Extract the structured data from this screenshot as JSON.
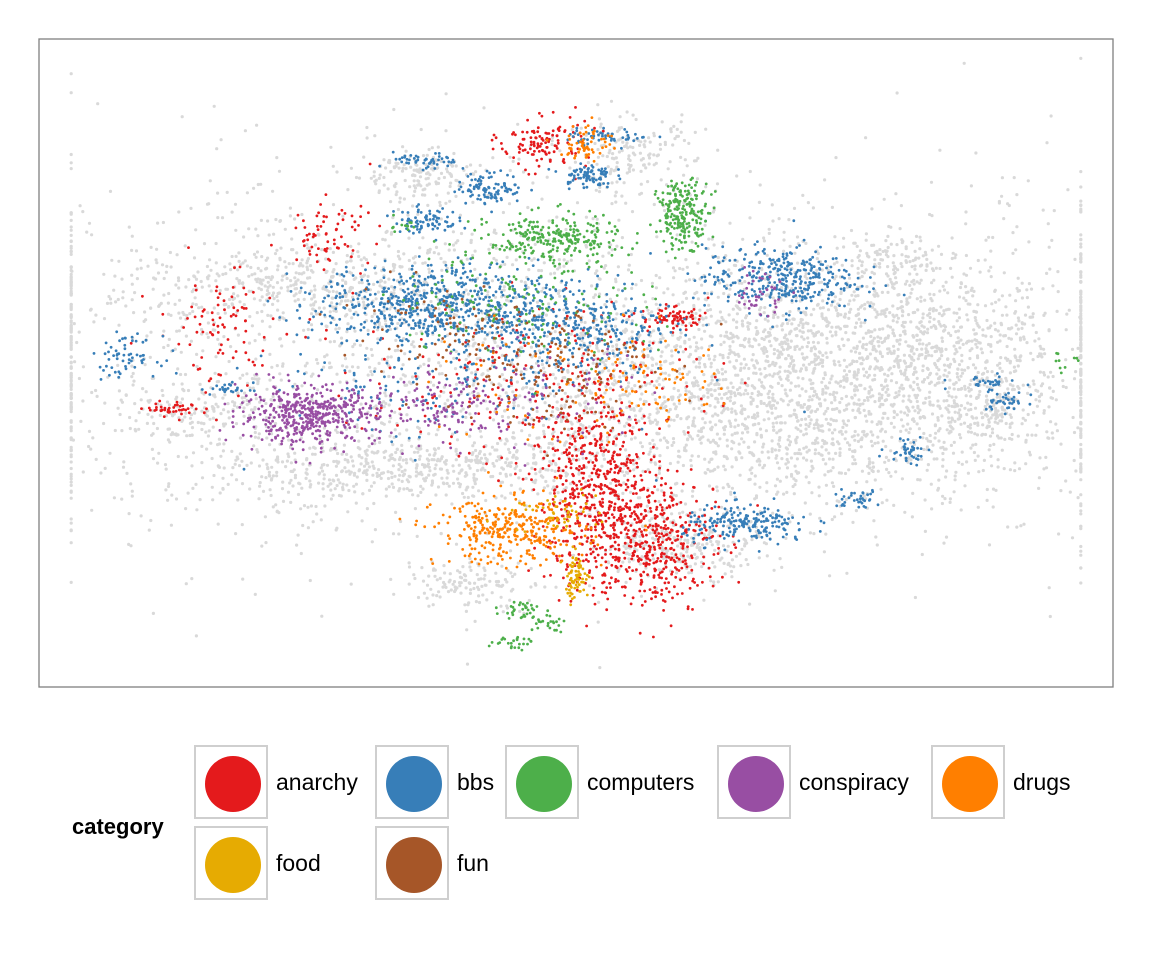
{
  "chart_data": {
    "type": "scatter",
    "title": "",
    "xlabel": "",
    "ylabel": "",
    "axes_visible": false,
    "grid": false,
    "background_points_color": "#d9d9d9",
    "legend": {
      "title": "category",
      "placement": "bottom",
      "entries": [
        {
          "name": "anarchy",
          "color": "#e41a1c"
        },
        {
          "name": "bbs",
          "color": "#377eb8"
        },
        {
          "name": "computers",
          "color": "#4daf4a"
        },
        {
          "name": "conspiracy",
          "color": "#984ea3"
        },
        {
          "name": "drugs",
          "color": "#ff7f00"
        },
        {
          "name": "food",
          "color": "#e6ab02"
        },
        {
          "name": "fun",
          "color": "#a65628"
        }
      ]
    },
    "xlim": [
      0,
      100
    ],
    "ylim": [
      0,
      100
    ],
    "clusters": [
      {
        "series": "background",
        "x": 50,
        "y": 50,
        "sx": 30,
        "sy": 14,
        "n": 2600
      },
      {
        "series": "background",
        "x": 70,
        "y": 44,
        "sx": 11,
        "sy": 8,
        "n": 1400
      },
      {
        "series": "background",
        "x": 80,
        "y": 55,
        "sx": 8,
        "sy": 5,
        "n": 500
      },
      {
        "series": "background",
        "x": 25,
        "y": 62,
        "sx": 9,
        "sy": 3,
        "n": 400
      },
      {
        "series": "background",
        "x": 28,
        "y": 33,
        "sx": 7,
        "sy": 3,
        "n": 250
      },
      {
        "series": "background",
        "x": 40,
        "y": 34,
        "sx": 6,
        "sy": 2,
        "n": 200
      },
      {
        "series": "background",
        "x": 60,
        "y": 22,
        "sx": 4,
        "sy": 2.5,
        "n": 250
      },
      {
        "series": "background",
        "x": 40,
        "y": 16,
        "sx": 3,
        "sy": 2,
        "n": 120
      },
      {
        "series": "background",
        "x": 35,
        "y": 79,
        "sx": 3,
        "sy": 2,
        "n": 150
      },
      {
        "series": "background",
        "x": 55,
        "y": 82,
        "sx": 3,
        "sy": 3,
        "n": 150
      },
      {
        "series": "background",
        "x": 80,
        "y": 66,
        "sx": 3,
        "sy": 2,
        "n": 100
      },
      {
        "series": "background",
        "x": 88,
        "y": 44,
        "sx": 4,
        "sy": 4,
        "n": 200
      },
      {
        "series": "background",
        "x": 15,
        "y": 42,
        "sx": 4,
        "sy": 3,
        "n": 150
      },
      {
        "series": "anarchy",
        "x": 52,
        "y": 30,
        "sx": 3,
        "sy": 7,
        "n": 550
      },
      {
        "series": "anarchy",
        "x": 57,
        "y": 22,
        "sx": 3,
        "sy": 5,
        "n": 400
      },
      {
        "series": "anarchy",
        "x": 47,
        "y": 84,
        "sx": 2,
        "sy": 2,
        "n": 120
      },
      {
        "series": "anarchy",
        "x": 59,
        "y": 57,
        "sx": 1.5,
        "sy": 0.8,
        "n": 70
      },
      {
        "series": "anarchy",
        "x": 27,
        "y": 70,
        "sx": 2,
        "sy": 2.5,
        "n": 70
      },
      {
        "series": "anarchy",
        "x": 17,
        "y": 55,
        "sx": 3,
        "sy": 5,
        "n": 90
      },
      {
        "series": "anarchy",
        "x": 46,
        "y": 47,
        "sx": 8,
        "sy": 6,
        "n": 220
      },
      {
        "series": "anarchy",
        "x": 13,
        "y": 43,
        "sx": 1.5,
        "sy": 0.5,
        "n": 40
      },
      {
        "series": "bbs",
        "x": 36,
        "y": 59,
        "sx": 5,
        "sy": 3,
        "n": 550
      },
      {
        "series": "bbs",
        "x": 49,
        "y": 56,
        "sx": 5,
        "sy": 4,
        "n": 420
      },
      {
        "series": "bbs",
        "x": 69,
        "y": 63,
        "sx": 3.5,
        "sy": 2.5,
        "n": 350
      },
      {
        "series": "bbs",
        "x": 42,
        "y": 77,
        "sx": 1.5,
        "sy": 1.2,
        "n": 100
      },
      {
        "series": "bbs",
        "x": 36,
        "y": 72,
        "sx": 1.5,
        "sy": 1,
        "n": 80
      },
      {
        "series": "bbs",
        "x": 51,
        "y": 79,
        "sx": 1.2,
        "sy": 1,
        "n": 80
      },
      {
        "series": "bbs",
        "x": 53,
        "y": 85,
        "sx": 2,
        "sy": 0.6,
        "n": 50
      },
      {
        "series": "bbs",
        "x": 36,
        "y": 81,
        "sx": 1.5,
        "sy": 0.7,
        "n": 50
      },
      {
        "series": "bbs",
        "x": 66,
        "y": 25,
        "sx": 3,
        "sy": 1.5,
        "n": 200
      },
      {
        "series": "bbs",
        "x": 76,
        "y": 29,
        "sx": 1.2,
        "sy": 0.7,
        "n": 35
      },
      {
        "series": "bbs",
        "x": 81,
        "y": 37,
        "sx": 1,
        "sy": 1.2,
        "n": 40
      },
      {
        "series": "bbs",
        "x": 8,
        "y": 51,
        "sx": 1.5,
        "sy": 1.5,
        "n": 60
      },
      {
        "series": "bbs",
        "x": 18,
        "y": 46,
        "sx": 1,
        "sy": 0.5,
        "n": 25
      },
      {
        "series": "bbs",
        "x": 90,
        "y": 44,
        "sx": 1,
        "sy": 0.8,
        "n": 35
      },
      {
        "series": "bbs",
        "x": 88,
        "y": 47,
        "sx": 1.5,
        "sy": 0.5,
        "n": 30
      },
      {
        "series": "bbs",
        "x": 37,
        "y": 47,
        "sx": 8,
        "sy": 5,
        "n": 150
      },
      {
        "series": "computers",
        "x": 48,
        "y": 69,
        "sx": 3,
        "sy": 2,
        "n": 250
      },
      {
        "series": "computers",
        "x": 60,
        "y": 73,
        "sx": 1.2,
        "sy": 2.5,
        "n": 220
      },
      {
        "series": "computers",
        "x": 45,
        "y": 60,
        "sx": 6,
        "sy": 5,
        "n": 150
      },
      {
        "series": "computers",
        "x": 45,
        "y": 12,
        "sx": 1,
        "sy": 0.8,
        "n": 30
      },
      {
        "series": "computers",
        "x": 47,
        "y": 10,
        "sx": 1,
        "sy": 0.7,
        "n": 25
      },
      {
        "series": "computers",
        "x": 44,
        "y": 7,
        "sx": 1,
        "sy": 0.6,
        "n": 25
      },
      {
        "series": "computers",
        "x": 34,
        "y": 71,
        "sx": 0.8,
        "sy": 0.6,
        "n": 12
      },
      {
        "series": "computers",
        "x": 95,
        "y": 50,
        "sx": 0.8,
        "sy": 1,
        "n": 10
      },
      {
        "series": "conspiracy",
        "x": 25,
        "y": 42,
        "sx": 3.2,
        "sy": 2.2,
        "n": 450
      },
      {
        "series": "conspiracy",
        "x": 37,
        "y": 43,
        "sx": 4,
        "sy": 2.5,
        "n": 120
      },
      {
        "series": "conspiracy",
        "x": 67,
        "y": 61,
        "sx": 1.2,
        "sy": 2,
        "n": 40
      },
      {
        "series": "conspiracy",
        "x": 45,
        "y": 44,
        "sx": 6,
        "sy": 4,
        "n": 80
      },
      {
        "series": "drugs",
        "x": 44,
        "y": 24,
        "sx": 3.5,
        "sy": 2.5,
        "n": 320
      },
      {
        "series": "drugs",
        "x": 51,
        "y": 84,
        "sx": 1.2,
        "sy": 1.5,
        "n": 60
      },
      {
        "series": "drugs",
        "x": 58,
        "y": 47,
        "sx": 3,
        "sy": 3,
        "n": 60
      },
      {
        "series": "drugs",
        "x": 49,
        "y": 45,
        "sx": 6,
        "sy": 5,
        "n": 60
      },
      {
        "series": "food",
        "x": 50,
        "y": 17,
        "sx": 0.6,
        "sy": 1.8,
        "n": 70
      },
      {
        "series": "food",
        "x": 48,
        "y": 27,
        "sx": 2,
        "sy": 1.5,
        "n": 50
      },
      {
        "series": "fun",
        "x": 47,
        "y": 50,
        "sx": 5,
        "sy": 5,
        "n": 150
      },
      {
        "series": "fun",
        "x": 36,
        "y": 55,
        "sx": 5,
        "sy": 4,
        "n": 60
      }
    ]
  }
}
